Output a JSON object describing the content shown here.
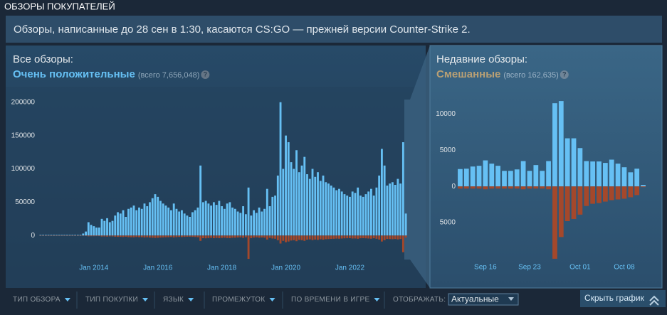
{
  "header": {
    "title": "ОБЗОРЫ ПОКУПАТЕЛЕЙ"
  },
  "notice": "Обзоры, написанные до 28 сен в 1:30, касаются CS:GO — прежней версии Counter-Strike 2.",
  "summaries": [
    {
      "label": "Все обзоры:",
      "rating": "Очень положительные",
      "total": "(всего 7,656,048)",
      "help": "?"
    },
    {
      "label": "Недавние обзоры:",
      "rating": "Смешанные",
      "total": "(всего 162,635)",
      "help": "?"
    }
  ],
  "filters": [
    "ТИП ОБЗОРА",
    "ТИП ПОКУПКИ",
    "ЯЗЫК",
    "ПРОМЕЖУТОК",
    "ПО ВРЕМЕНИ В ИГРЕ"
  ],
  "display": {
    "label": "ОТОБРАЖАТЬ:",
    "value": "Актуальные"
  },
  "hide_graph": "Скрыть график",
  "chart_data": [
    {
      "type": "bar",
      "categories": [
        null,
        null,
        null,
        null,
        null,
        null,
        null,
        null,
        null,
        null,
        null,
        null,
        null,
        null,
        null,
        null,
        null,
        null,
        null,
        null,
        "Jan 2014",
        null,
        null,
        null,
        null,
        null,
        null,
        null,
        null,
        null,
        null,
        null,
        null,
        null,
        null,
        null,
        null,
        null,
        null,
        null,
        null,
        null,
        null,
        null,
        "Jan 2016",
        null,
        null,
        null,
        null,
        null,
        null,
        null,
        null,
        null,
        null,
        null,
        null,
        null,
        null,
        null,
        null,
        null,
        null,
        null,
        null,
        null,
        null,
        null,
        "Jan 2018",
        null,
        null,
        null,
        null,
        null,
        null,
        null,
        null,
        null,
        null,
        null,
        null,
        null,
        null,
        null,
        null,
        null,
        null,
        null,
        null,
        null,
        null,
        null,
        "Jan 2020",
        null,
        null,
        null,
        null,
        null,
        null,
        null,
        null,
        null,
        null,
        null,
        null,
        null,
        null,
        null,
        null,
        null,
        null,
        null,
        null,
        null,
        null,
        null,
        "Jan 2022",
        null,
        null,
        null,
        null,
        null,
        null,
        null,
        null,
        null,
        null,
        null,
        null,
        null,
        null,
        null,
        null,
        null,
        null,
        null,
        null,
        null
      ],
      "series": [
        {
          "color": "#66c0f4",
          "values": [
            1000,
            1000,
            1000,
            1000,
            1000,
            1000,
            1000,
            1000,
            1000,
            1000,
            1000,
            1000,
            1000,
            1000,
            1000,
            1000,
            3000,
            6000,
            20000,
            16000,
            14000,
            12000,
            12000,
            25000,
            22000,
            26000,
            20000,
            22000,
            30000,
            35000,
            33000,
            38000,
            28000,
            40000,
            42000,
            45000,
            38000,
            42000,
            40000,
            48000,
            44000,
            50000,
            56000,
            62000,
            58000,
            52000,
            48000,
            45000,
            42000,
            38000,
            48000,
            40000,
            36000,
            38000,
            33000,
            30000,
            28000,
            35000,
            38000,
            42000,
            105000,
            50000,
            52000,
            48000,
            45000,
            50000,
            46000,
            52000,
            44000,
            40000,
            48000,
            50000,
            42000,
            40000,
            36000,
            34000,
            44000,
            32000,
            72000,
            30000,
            38000,
            34000,
            42000,
            36000,
            40000,
            70000,
            44000,
            58000,
            60000,
            90000,
            200000,
            100000,
            150000,
            140000,
            110000,
            100000,
            128000,
            95000,
            105000,
            118000,
            92000,
            85000,
            100000,
            88000,
            95000,
            82000,
            90000,
            80000,
            78000,
            75000,
            72000,
            68000,
            70000,
            66000,
            62000,
            60000,
            58000,
            66000,
            64000,
            72000,
            60000,
            58000,
            62000,
            66000,
            70000,
            60000,
            72000,
            90000,
            130000,
            105000,
            75000,
            78000,
            80000,
            76000,
            85000,
            78000,
            140000,
            33000
          ]
        },
        {
          "color": "#a4482b",
          "values": [
            -300,
            -300,
            -300,
            -300,
            -300,
            -300,
            -300,
            -300,
            -300,
            -300,
            -300,
            -300,
            -300,
            -300,
            -300,
            -300,
            -500,
            -600,
            -1200,
            -1000,
            -1000,
            -900,
            -900,
            -1500,
            -1400,
            -1600,
            -1300,
            -1400,
            -1800,
            -2000,
            -2000,
            -2200,
            -1800,
            -2400,
            -2500,
            -2600,
            -2200,
            -2500,
            -2400,
            -2800,
            -2600,
            -3000,
            -3300,
            -3600,
            -3400,
            -3000,
            -2800,
            -2600,
            -2500,
            -2200,
            -2800,
            -2400,
            -2100,
            -2200,
            -2000,
            -1800,
            -1700,
            -2000,
            -2200,
            -2500,
            -8000,
            -4000,
            -4200,
            -3800,
            -3500,
            -4000,
            -3600,
            -4000,
            -3500,
            -3200,
            -3800,
            -4000,
            -3300,
            -3200,
            -2900,
            -2700,
            -3500,
            -2600,
            -35000,
            -4000,
            -3000,
            -2700,
            -3300,
            -2900,
            -3200,
            -6000,
            -3500,
            -4500,
            -4800,
            -7000,
            -12000,
            -8000,
            -10000,
            -9000,
            -7500,
            -7000,
            -8500,
            -6500,
            -7000,
            -8000,
            -6200,
            -5800,
            -6800,
            -6000,
            -6500,
            -5600,
            -6200,
            -5500,
            -5300,
            -5100,
            -4900,
            -4600,
            -4800,
            -4500,
            -4200,
            -4100,
            -4000,
            -4500,
            -4400,
            -4900,
            -4100,
            -4000,
            -4200,
            -4500,
            -4800,
            -4100,
            -4900,
            -6000,
            -9000,
            -7000,
            -5100,
            -5300,
            -5500,
            -5200,
            -5800,
            -5300,
            -25000,
            -3000
          ]
        }
      ],
      "ylim": [
        -36000,
        220000
      ],
      "yticks": [
        0,
        50000,
        100000,
        150000,
        200000
      ],
      "grid": false
    },
    {
      "type": "bar",
      "categories": [
        null,
        null,
        null,
        null,
        "Sep 16",
        null,
        null,
        null,
        null,
        null,
        null,
        "Sep 23",
        null,
        null,
        null,
        null,
        null,
        null,
        null,
        "Oct 01",
        null,
        null,
        null,
        null,
        null,
        null,
        "Oct 08",
        null,
        null,
        null
      ],
      "series": [
        {
          "color": "#66c0f4",
          "values": [
            2400,
            2450,
            2750,
            2850,
            3600,
            3150,
            2850,
            2150,
            2150,
            2350,
            3500,
            2150,
            2950,
            2150,
            3500,
            11500,
            11800,
            6650,
            6650,
            5300,
            3500,
            3450,
            3450,
            3250,
            3700,
            3150,
            2650,
            1950,
            2450,
            200
          ]
        },
        {
          "color": "#a4482b",
          "values": [
            -300,
            -300,
            -300,
            -300,
            -400,
            -300,
            -300,
            -300,
            -300,
            -300,
            -400,
            -300,
            -300,
            -300,
            -400,
            -10000,
            -7000,
            -4800,
            -4500,
            -3900,
            -2700,
            -2400,
            -2300,
            -2100,
            -1900,
            -1800,
            -1700,
            -1500,
            -1200,
            -100
          ]
        }
      ],
      "ylim": [
        -10600,
        12500
      ],
      "yticks": [
        0,
        5000,
        10000,
        {
          "value": -5000,
          "label": "5000"
        }
      ],
      "grid": false
    }
  ]
}
